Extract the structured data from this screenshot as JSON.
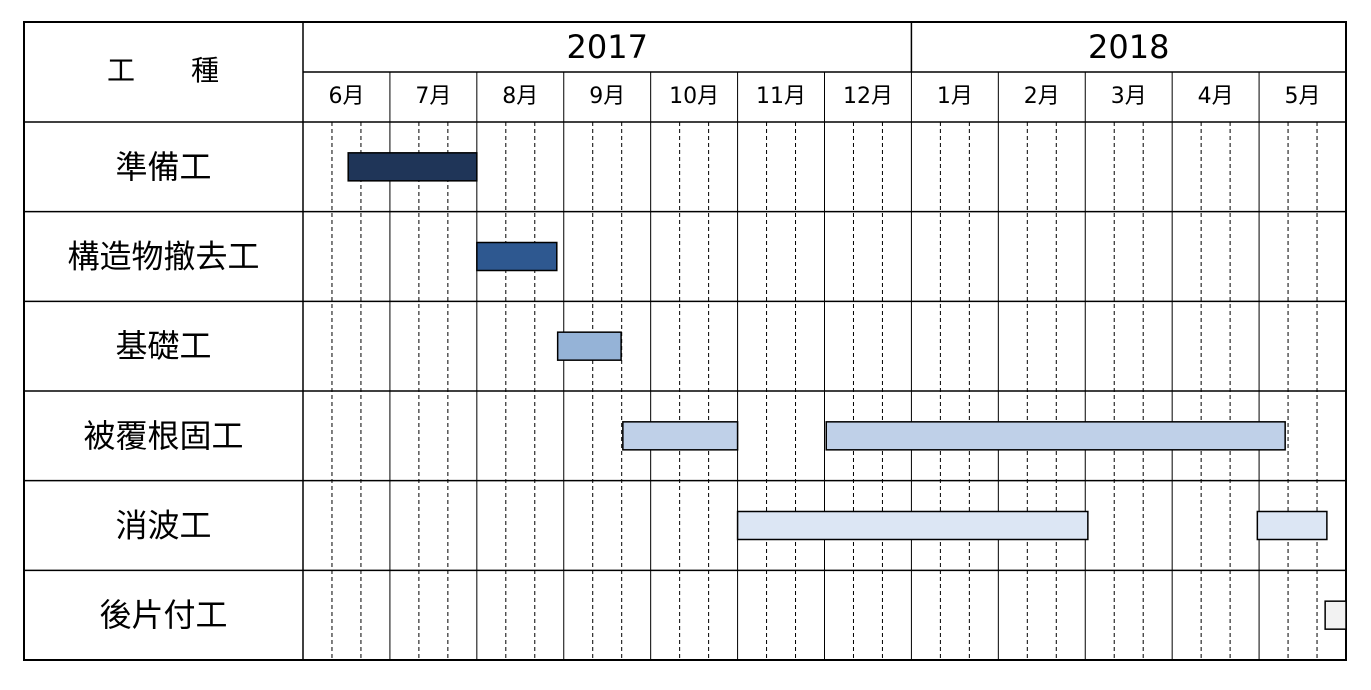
{
  "chart_data": {
    "type": "gantt",
    "header": "工　　種",
    "years": [
      {
        "label": "2017",
        "start": 0,
        "end": 7
      },
      {
        "label": "2018",
        "start": 7,
        "end": 12
      }
    ],
    "categories": [
      "6月",
      "7月",
      "8月",
      "9月",
      "10月",
      "11月",
      "12月",
      "1月",
      "2月",
      "3月",
      "4月",
      "5月"
    ],
    "xlim": [
      0,
      12
    ],
    "tasks": [
      {
        "name": "準備工",
        "color": "#1f3558",
        "segments": [
          [
            0.52,
            2.0
          ]
        ]
      },
      {
        "name": "構造物撤去工",
        "color": "#2e5890",
        "segments": [
          [
            2.0,
            2.92
          ]
        ]
      },
      {
        "name": "基礎工",
        "color": "#95b3d7",
        "segments": [
          [
            2.93,
            3.66
          ]
        ]
      },
      {
        "name": "被覆根固工",
        "color": "#bfd0e8",
        "segments": [
          [
            3.68,
            5.0
          ],
          [
            6.02,
            11.3
          ]
        ]
      },
      {
        "name": "消波工",
        "color": "#dce6f4",
        "segments": [
          [
            5.0,
            9.03
          ],
          [
            10.98,
            11.78
          ]
        ]
      },
      {
        "name": "後片付工",
        "color": "#f2f2f2",
        "segments": [
          [
            11.76,
            12.0
          ]
        ]
      }
    ]
  }
}
